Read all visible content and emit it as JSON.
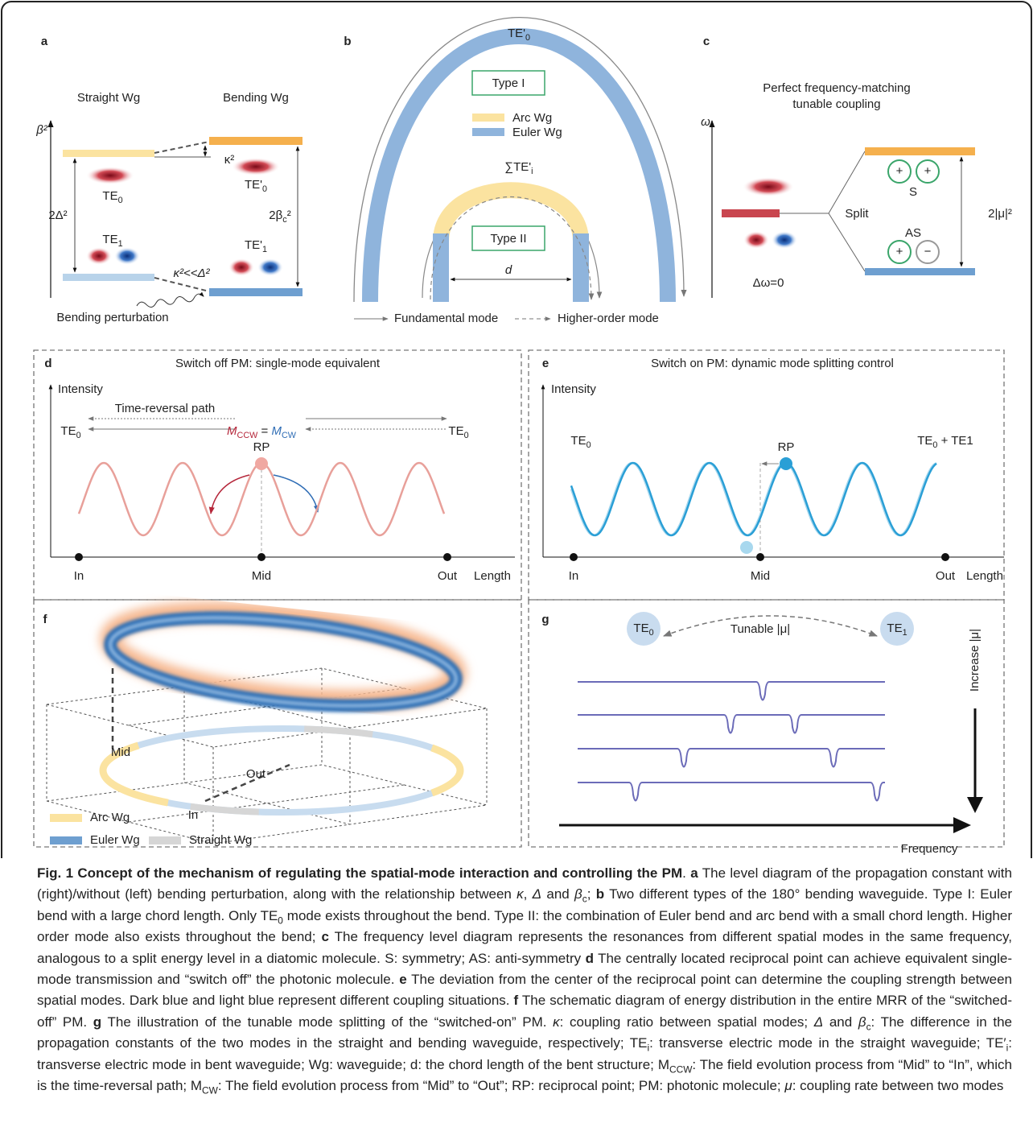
{
  "panels": {
    "a": {
      "letter": "a",
      "straight": "Straight Wg",
      "bending": "Bending Wg",
      "axis": "β²",
      "te0": [
        {
          "text": "TE"
        },
        {
          "text": "0",
          "style": "sub"
        }
      ],
      "te0p": [
        {
          "text": "TE'"
        },
        {
          "text": "0",
          "style": "sub"
        }
      ],
      "te1": [
        {
          "text": "TE"
        },
        {
          "text": "1",
          "style": "sub"
        }
      ],
      "te1p": [
        {
          "text": "TE'"
        },
        {
          "text": "1",
          "style": "sub"
        }
      ],
      "kappa": "κ²",
      "delta": "2Δ²",
      "beta": [
        {
          "text": "2β"
        },
        {
          "text": "c",
          "style": "sub"
        },
        {
          "text": "²"
        }
      ],
      "ineq": "κ²<<Δ²",
      "perturb": "Bending perturbation"
    },
    "b": {
      "letter": "b",
      "top": [
        {
          "text": "TE'"
        },
        {
          "text": "0",
          "style": "sub"
        }
      ],
      "type1": "Type I",
      "arc": "Arc Wg",
      "euler": "Euler Wg",
      "sum": [
        {
          "text": "∑TE'"
        },
        {
          "text": "i",
          "style": "sub"
        }
      ],
      "type2": "Type II",
      "d": "d",
      "fund": "Fundamental mode",
      "higher": "Higher-order mode"
    },
    "c": {
      "letter": "c",
      "title1": "Perfect frequency-matching",
      "title2": "tunable coupling",
      "axis": "ω",
      "dw": "Δω=0",
      "split": "Split",
      "signs": [
        "+",
        "+",
        "+",
        "−"
      ],
      "s": "S",
      "as": "AS",
      "mu": "2|μ|²"
    },
    "d": {
      "letter": "d",
      "title": "Switch off PM: single-mode equivalent",
      "intensity": "Intensity",
      "trp": "Time-reversal path",
      "te0l": [
        {
          "text": "TE"
        },
        {
          "text": "0",
          "style": "sub"
        }
      ],
      "m": [
        {
          "text": "M",
          "style": "i",
          "color": "#b5263a"
        },
        {
          "text": "CCW",
          "style": "sub",
          "color": "#b5263a"
        },
        {
          "text": " = "
        },
        {
          "text": "M",
          "style": "i",
          "color": "#2f6db5"
        },
        {
          "text": "CW",
          "style": "sub",
          "color": "#2f6db5"
        }
      ],
      "te0r": [
        {
          "text": "TE"
        },
        {
          "text": "0",
          "style": "sub"
        }
      ],
      "rp": "RP",
      "in": "In",
      "mid": "Mid",
      "out": "Out",
      "length": "Length"
    },
    "e": {
      "letter": "e",
      "title": "Switch on PM: dynamic mode splitting control",
      "intensity": "Intensity",
      "te0": [
        {
          "text": "TE"
        },
        {
          "text": "0",
          "style": "sub"
        }
      ],
      "te01": [
        {
          "text": "TE"
        },
        {
          "text": "0",
          "style": "sub"
        },
        {
          "text": " + TE1"
        }
      ],
      "rp": "RP",
      "in": "In",
      "mid": "Mid",
      "out": "Out",
      "length": "Length"
    },
    "f": {
      "letter": "f",
      "mid": "Mid",
      "out": "Out",
      "in": "In",
      "arc": "Arc Wg",
      "euler": "Euler Wg",
      "straight": "Straight Wg"
    },
    "g": {
      "letter": "g",
      "te0": [
        {
          "text": "TE"
        },
        {
          "text": "0",
          "style": "sub"
        }
      ],
      "te1": [
        {
          "text": "TE"
        },
        {
          "text": "1",
          "style": "sub"
        }
      ],
      "tunable": "Tunable |μ|",
      "increase": "Increase |μ|",
      "frequency": "Frequency"
    }
  },
  "caption": {
    "runs": [
      {
        "text": "Fig. 1 Concept of the mechanism of regulating the spatial-mode interaction and controlling the PM",
        "style": "b"
      },
      {
        "text": ". "
      },
      {
        "text": "a",
        "style": "b"
      },
      {
        "text": " The level diagram of the propagation constant with (right)/without (left) bending perturbation, along with the relationship between "
      },
      {
        "text": "κ",
        "style": "i"
      },
      {
        "text": ", "
      },
      {
        "text": "Δ",
        "style": "i"
      },
      {
        "text": " and "
      },
      {
        "text": "β",
        "style": "i"
      },
      {
        "text": "c",
        "style": "sub"
      },
      {
        "text": "; "
      },
      {
        "text": "b",
        "style": "b"
      },
      {
        "text": " Two different types of the 180° bending waveguide. Type I: Euler bend with a large chord length. Only TE"
      },
      {
        "text": "0",
        "style": "sub"
      },
      {
        "text": " mode exists throughout the bend. Type II: the combination of Euler bend and arc bend with a small chord length. Higher order mode also exists throughout the bend; "
      },
      {
        "text": "c",
        "style": "b"
      },
      {
        "text": " The frequency level diagram represents the resonances from different spatial modes in the same frequency, analogous to a split energy level in a diatomic molecule. S: symmetry; AS: anti-symmetry "
      },
      {
        "text": "d",
        "style": "b"
      },
      {
        "text": " The centrally located reciprocal point can achieve equivalent single-mode transmission and “switch off” the photonic molecule. "
      },
      {
        "text": "e",
        "style": "b"
      },
      {
        "text": " The deviation from the center of the reciprocal point can determine the coupling strength between spatial modes. Dark blue and light blue represent different coupling situations. "
      },
      {
        "text": "f",
        "style": "b"
      },
      {
        "text": " The schematic diagram of energy distribution in the entire MRR of the “switched-off” PM. "
      },
      {
        "text": "g",
        "style": "b"
      },
      {
        "text": " The illustration of the tunable mode splitting of the “switched-on” PM. "
      },
      {
        "text": "κ",
        "style": "i"
      },
      {
        "text": ": coupling ratio between spatial modes; "
      },
      {
        "text": "Δ",
        "style": "i"
      },
      {
        "text": " and "
      },
      {
        "text": "β",
        "style": "i"
      },
      {
        "text": "c",
        "style": "sub"
      },
      {
        "text": ": The difference in the propagation constants of the two modes in the straight and bending waveguide, respectively; TE"
      },
      {
        "text": "i",
        "style": "sub"
      },
      {
        "text": ": transverse electric mode in the straight waveguide; TE′"
      },
      {
        "text": "i",
        "style": "sub"
      },
      {
        "text": ": transverse electric mode in bent waveguide; Wg: waveguide; d: the chord length of the bent structure; M"
      },
      {
        "text": "CCW",
        "style": "sub"
      },
      {
        "text": ": The field evolution process from “Mid” to “In”, which is the time-reversal path; M"
      },
      {
        "text": "CW",
        "style": "sub"
      },
      {
        "text": ": The field evolution process from “Mid” to “Out”; RP: reciprocal point; PM: photonic molecule; "
      },
      {
        "text": "μ",
        "style": "i"
      },
      {
        "text": ": coupling rate between two modes"
      }
    ]
  }
}
